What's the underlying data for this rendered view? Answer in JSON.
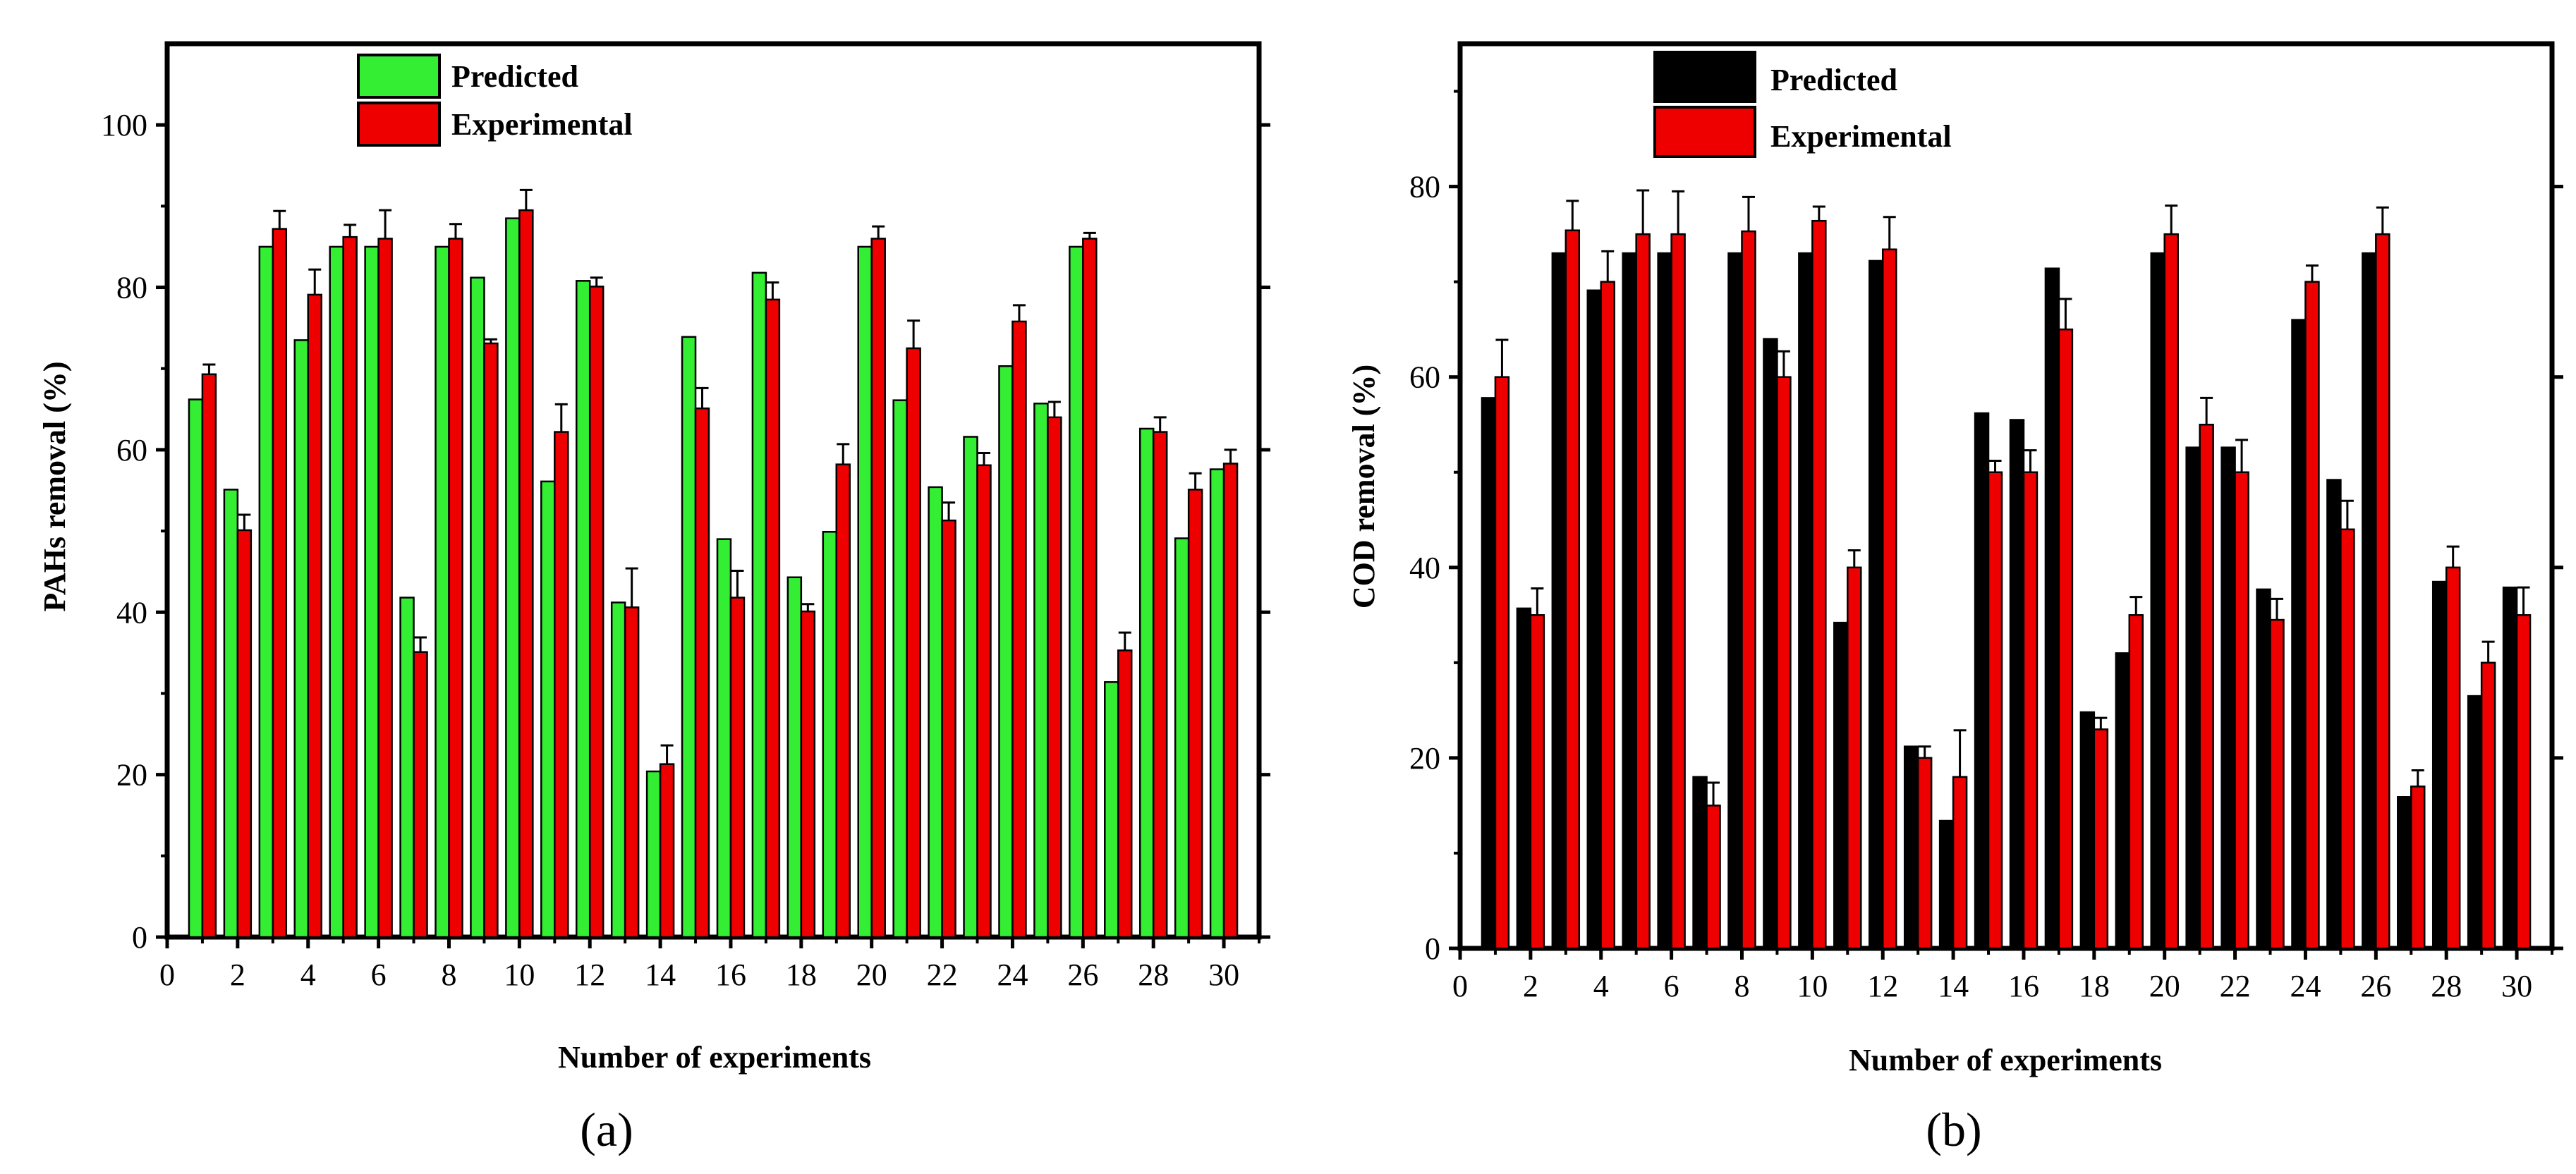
{
  "panels": [
    {
      "caption": "(a)",
      "chart_data": {
        "type": "bar",
        "xlabel": "Number of experiments",
        "ylabel": "PAHs removal (%)",
        "xlim": [
          0,
          31
        ],
        "ylim": [
          0,
          110
        ],
        "xticks": [
          0,
          2,
          4,
          6,
          8,
          10,
          12,
          14,
          16,
          18,
          20,
          22,
          24,
          26,
          28,
          30
        ],
        "yticks": [
          0,
          20,
          40,
          60,
          80,
          100
        ],
        "grid": false,
        "legend": "top-left",
        "categories": [
          1,
          2,
          3,
          4,
          5,
          6,
          7,
          8,
          9,
          10,
          11,
          12,
          13,
          14,
          15,
          16,
          17,
          18,
          19,
          20,
          21,
          22,
          23,
          24,
          25,
          26,
          27,
          28,
          29,
          30
        ],
        "series": [
          {
            "name": "Predicted",
            "color": "#33ee33",
            "values": [
              66.2,
              55.1,
              85.0,
              73.5,
              85.0,
              85.0,
              41.8,
              85.0,
              81.2,
              88.5,
              56.1,
              80.8,
              41.2,
              20.4,
              73.9,
              49.0,
              81.8,
              44.3,
              49.9,
              85.0,
              66.1,
              55.4,
              61.6,
              70.3,
              65.7,
              85.0,
              31.4,
              62.6,
              49.1,
              57.6
            ]
          },
          {
            "name": "Experimental",
            "color": "#ee0000",
            "values": [
              69.3,
              50.1,
              87.2,
              79.1,
              86.2,
              86.0,
              35.1,
              86.0,
              73.1,
              89.5,
              62.2,
              80.1,
              40.6,
              21.3,
              65.1,
              41.8,
              78.5,
              40.1,
              58.2,
              86.0,
              72.5,
              51.3,
              58.1,
              75.8,
              64.0,
              86.0,
              35.3,
              62.2,
              55.1,
              58.3
            ],
            "errors": [
              1.2,
              1.9,
              2.2,
              3.1,
              1.5,
              3.5,
              1.8,
              1.8,
              0.5,
              2.5,
              3.4,
              1.1,
              4.8,
              2.3,
              2.5,
              3.3,
              2.1,
              0.9,
              2.5,
              1.5,
              3.4,
              2.2,
              1.5,
              2.0,
              1.9,
              0.7,
              2.2,
              1.8,
              2.0,
              1.7
            ]
          }
        ]
      }
    },
    {
      "caption": "(b)",
      "chart_data": {
        "type": "bar",
        "xlabel": "Number of experiments",
        "ylabel": "COD removal (%)",
        "xlim": [
          0,
          31
        ],
        "ylim": [
          0,
          95
        ],
        "xticks": [
          0,
          2,
          4,
          6,
          8,
          10,
          12,
          14,
          16,
          18,
          20,
          22,
          24,
          26,
          28,
          30
        ],
        "yticks": [
          0,
          20,
          40,
          60,
          80
        ],
        "grid": false,
        "legend": "top-left",
        "categories": [
          1,
          2,
          3,
          4,
          5,
          6,
          7,
          8,
          9,
          10,
          11,
          12,
          13,
          14,
          15,
          16,
          17,
          18,
          19,
          20,
          21,
          22,
          23,
          24,
          25,
          26,
          27,
          28,
          29,
          30
        ],
        "series": [
          {
            "name": "Predicted",
            "color": "#000000",
            "values": [
              57.8,
              35.7,
              73.0,
              69.1,
              73.0,
              73.0,
              18.0,
              73.0,
              64.0,
              73.0,
              34.2,
              72.2,
              21.2,
              13.4,
              56.2,
              55.5,
              71.4,
              24.8,
              31.0,
              73.0,
              52.6,
              52.6,
              37.7,
              66.0,
              49.2,
              73.0,
              15.9,
              38.5,
              26.5,
              37.9
            ]
          },
          {
            "name": "Experimental",
            "color": "#ee0000",
            "values": [
              60.0,
              35.0,
              75.4,
              70.0,
              75.0,
              75.0,
              15.0,
              75.3,
              60.0,
              76.4,
              40.0,
              73.4,
              20.0,
              18.0,
              50.0,
              50.0,
              65.0,
              23.0,
              35.0,
              75.0,
              55.0,
              50.0,
              34.5,
              70.0,
              44.0,
              75.0,
              17.0,
              40.0,
              30.0,
              35.0
            ],
            "errors": [
              3.9,
              2.8,
              3.1,
              3.2,
              4.6,
              4.5,
              2.4,
              3.6,
              2.7,
              1.5,
              1.8,
              3.4,
              1.2,
              4.9,
              1.2,
              2.3,
              3.2,
              1.2,
              1.9,
              3.0,
              2.8,
              3.4,
              2.2,
              1.7,
              3.0,
              2.8,
              1.7,
              2.2,
              2.2,
              2.9
            ]
          }
        ]
      }
    }
  ]
}
